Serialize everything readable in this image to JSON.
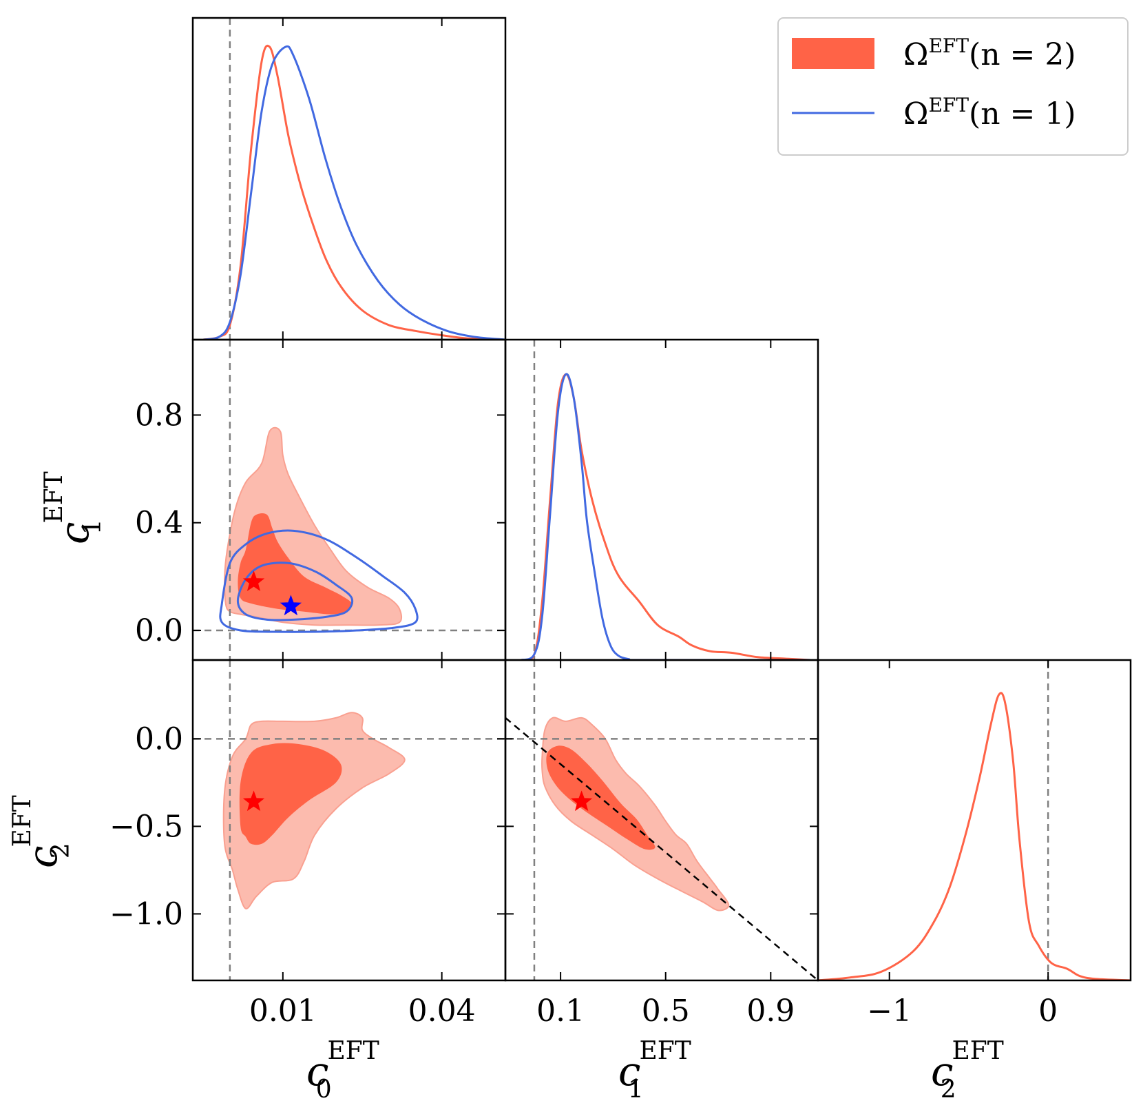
{
  "chart_data": {
    "type": "corner",
    "parameters": [
      {
        "symbol": "c",
        "sub": "0",
        "sup": "EFT",
        "xlim": [
          -0.007,
          0.052
        ],
        "xticks": [
          0.01,
          0.04
        ],
        "xtick_labels": [
          "0.01",
          "0.04"
        ],
        "fiducial": 0.0
      },
      {
        "symbol": "c",
        "sub": "1",
        "sup": "EFT",
        "xlim": [
          -0.11,
          1.08
        ],
        "xticks": [
          0.1,
          0.5,
          0.9
        ],
        "xtick_labels": [
          "0.1",
          "0.5",
          "0.9"
        ],
        "ylim": [
          -0.11,
          1.08
        ],
        "yticks": [
          0.0,
          0.4,
          0.8
        ],
        "ytick_labels": [
          "0.0",
          "0.4",
          "0.8"
        ],
        "fiducial": 0.0
      },
      {
        "symbol": "c",
        "sub": "2",
        "sup": "EFT",
        "xlim": [
          -1.45,
          0.52
        ],
        "xticks": [
          -1,
          0
        ],
        "xtick_labels": [
          "−1",
          "0"
        ],
        "ylim": [
          -1.38,
          0.45
        ],
        "yticks": [
          0.0,
          -0.5,
          -1.0
        ],
        "ytick_labels": [
          "0.0",
          "−0.5",
          "−1.0"
        ],
        "fiducial": 0.0
      }
    ],
    "legend": [
      {
        "label_base": "Ω",
        "label_sup": "EFT",
        "label_args": "(n = 2)",
        "style": "filled",
        "color": "#ff6347"
      },
      {
        "label_base": "Ω",
        "label_sup": "EFT",
        "label_args": "(n = 1)",
        "style": "line",
        "color": "#4169e1"
      }
    ],
    "legend_position": "top-right",
    "series": [
      {
        "name": "n=2",
        "color": "#ff6347",
        "fill_outer": "#fcbbae",
        "fill_inner": "#ff6347",
        "marginal_c0": [
          [
            -0.005,
            0
          ],
          [
            -0.002,
            0.01
          ],
          [
            0.0,
            0.05
          ],
          [
            0.002,
            0.25
          ],
          [
            0.004,
            0.65
          ],
          [
            0.006,
            0.95
          ],
          [
            0.0075,
            1.0
          ],
          [
            0.009,
            0.9
          ],
          [
            0.011,
            0.7
          ],
          [
            0.013,
            0.55
          ],
          [
            0.015,
            0.43
          ],
          [
            0.018,
            0.28
          ],
          [
            0.021,
            0.18
          ],
          [
            0.025,
            0.1
          ],
          [
            0.03,
            0.05
          ],
          [
            0.035,
            0.03
          ],
          [
            0.04,
            0.015
          ],
          [
            0.045,
            0.004
          ],
          [
            0.052,
            0
          ]
        ],
        "marginal_c1": [
          [
            -0.05,
            0
          ],
          [
            0.0,
            0.02
          ],
          [
            0.03,
            0.2
          ],
          [
            0.06,
            0.55
          ],
          [
            0.09,
            0.88
          ],
          [
            0.12,
            0.98
          ],
          [
            0.15,
            0.9
          ],
          [
            0.18,
            0.72
          ],
          [
            0.22,
            0.55
          ],
          [
            0.27,
            0.4
          ],
          [
            0.32,
            0.29
          ],
          [
            0.4,
            0.2
          ],
          [
            0.47,
            0.12
          ],
          [
            0.55,
            0.08
          ],
          [
            0.6,
            0.05
          ],
          [
            0.67,
            0.03
          ],
          [
            0.75,
            0.025
          ],
          [
            0.85,
            0.01
          ],
          [
            0.95,
            0.005
          ],
          [
            1.05,
            0
          ]
        ],
        "marginal_c2": [
          [
            -1.45,
            0
          ],
          [
            -1.25,
            0.01
          ],
          [
            -1.05,
            0.03
          ],
          [
            -0.85,
            0.1
          ],
          [
            -0.72,
            0.2
          ],
          [
            -0.62,
            0.32
          ],
          [
            -0.52,
            0.5
          ],
          [
            -0.43,
            0.7
          ],
          [
            -0.36,
            0.88
          ],
          [
            -0.31,
            0.98
          ],
          [
            -0.27,
            0.95
          ],
          [
            -0.22,
            0.75
          ],
          [
            -0.18,
            0.48
          ],
          [
            -0.12,
            0.2
          ],
          [
            -0.06,
            0.12
          ],
          [
            0.02,
            0.06
          ],
          [
            0.12,
            0.04
          ],
          [
            0.2,
            0.015
          ],
          [
            0.3,
            0.005
          ],
          [
            0.52,
            0
          ]
        ],
        "best_fit": {
          "c0": 0.0045,
          "c1": 0.18,
          "c2": -0.36
        },
        "contour_c0_c1_outer": [
          [
            0.003,
            0.55
          ],
          [
            0.006,
            0.62
          ],
          [
            0.0075,
            0.74
          ],
          [
            0.0095,
            0.74
          ],
          [
            0.01,
            0.65
          ],
          [
            0.011,
            0.58
          ],
          [
            0.013,
            0.5
          ],
          [
            0.016,
            0.39
          ],
          [
            0.019,
            0.3
          ],
          [
            0.022,
            0.22
          ],
          [
            0.026,
            0.16
          ],
          [
            0.03,
            0.12
          ],
          [
            0.032,
            0.08
          ],
          [
            0.032,
            0.03
          ],
          [
            0.028,
            0.02
          ],
          [
            0.022,
            0.02
          ],
          [
            0.016,
            0.02
          ],
          [
            0.01,
            0.03
          ],
          [
            0.005,
            0.05
          ],
          [
            0.002,
            0.06
          ],
          [
            0.0,
            0.07
          ],
          [
            -0.0008,
            0.1
          ],
          [
            -0.001,
            0.2
          ],
          [
            -0.0005,
            0.3
          ],
          [
            0.001,
            0.45
          ]
        ],
        "contour_c0_c1_inner": [
          [
            0.003,
            0.3
          ],
          [
            0.004,
            0.4
          ],
          [
            0.005,
            0.43
          ],
          [
            0.007,
            0.43
          ],
          [
            0.008,
            0.38
          ],
          [
            0.009,
            0.33
          ],
          [
            0.011,
            0.27
          ],
          [
            0.014,
            0.2
          ],
          [
            0.018,
            0.16
          ],
          [
            0.021,
            0.13
          ],
          [
            0.023,
            0.1
          ],
          [
            0.022,
            0.07
          ],
          [
            0.019,
            0.06
          ],
          [
            0.014,
            0.07
          ],
          [
            0.009,
            0.08
          ],
          [
            0.004,
            0.1
          ],
          [
            0.002,
            0.12
          ],
          [
            0.0015,
            0.18
          ],
          [
            0.002,
            0.25
          ]
        ],
        "contour_c0_c2_outer": [
          [
            -0.001,
            -0.6
          ],
          [
            -0.001,
            -0.3
          ],
          [
            0.0005,
            -0.1
          ],
          [
            0.003,
            0.0
          ],
          [
            0.004,
            0.08
          ],
          [
            0.006,
            0.1
          ],
          [
            0.01,
            0.1
          ],
          [
            0.016,
            0.1
          ],
          [
            0.02,
            0.12
          ],
          [
            0.023,
            0.15
          ],
          [
            0.025,
            0.12
          ],
          [
            0.025,
            0.05
          ],
          [
            0.027,
            0.0
          ],
          [
            0.03,
            -0.05
          ],
          [
            0.033,
            -0.12
          ],
          [
            0.03,
            -0.2
          ],
          [
            0.025,
            -0.28
          ],
          [
            0.02,
            -0.4
          ],
          [
            0.016,
            -0.55
          ],
          [
            0.014,
            -0.7
          ],
          [
            0.012,
            -0.8
          ],
          [
            0.008,
            -0.82
          ],
          [
            0.005,
            -0.9
          ],
          [
            0.003,
            -0.97
          ],
          [
            0.0015,
            -0.86
          ],
          [
            0.0005,
            -0.75
          ]
        ],
        "contour_c0_c2_inner": [
          [
            0.002,
            -0.5
          ],
          [
            0.002,
            -0.25
          ],
          [
            0.004,
            -0.08
          ],
          [
            0.008,
            -0.03
          ],
          [
            0.013,
            -0.03
          ],
          [
            0.018,
            -0.07
          ],
          [
            0.021,
            -0.15
          ],
          [
            0.02,
            -0.25
          ],
          [
            0.015,
            -0.35
          ],
          [
            0.011,
            -0.45
          ],
          [
            0.008,
            -0.55
          ],
          [
            0.006,
            -0.6
          ],
          [
            0.004,
            -0.6
          ],
          [
            0.003,
            -0.56
          ]
        ],
        "contour_c1_c2_outer": [
          [
            0.03,
            -0.1
          ],
          [
            0.04,
            0.05
          ],
          [
            0.07,
            0.12
          ],
          [
            0.12,
            0.1
          ],
          [
            0.18,
            0.12
          ],
          [
            0.22,
            0.08
          ],
          [
            0.27,
            0.0
          ],
          [
            0.31,
            -0.12
          ],
          [
            0.35,
            -0.2
          ],
          [
            0.4,
            -0.27
          ],
          [
            0.46,
            -0.38
          ],
          [
            0.5,
            -0.47
          ],
          [
            0.54,
            -0.55
          ],
          [
            0.58,
            -0.6
          ],
          [
            0.62,
            -0.7
          ],
          [
            0.67,
            -0.8
          ],
          [
            0.7,
            -0.86
          ],
          [
            0.74,
            -0.95
          ],
          [
            0.7,
            -0.98
          ],
          [
            0.64,
            -0.93
          ],
          [
            0.56,
            -0.87
          ],
          [
            0.47,
            -0.8
          ],
          [
            0.38,
            -0.72
          ],
          [
            0.3,
            -0.63
          ],
          [
            0.22,
            -0.55
          ],
          [
            0.14,
            -0.47
          ],
          [
            0.08,
            -0.38
          ],
          [
            0.04,
            -0.27
          ],
          [
            0.03,
            -0.18
          ]
        ],
        "contour_c1_c2_inner": [
          [
            0.05,
            -0.08
          ],
          [
            0.09,
            -0.04
          ],
          [
            0.14,
            -0.06
          ],
          [
            0.2,
            -0.14
          ],
          [
            0.26,
            -0.24
          ],
          [
            0.33,
            -0.37
          ],
          [
            0.39,
            -0.46
          ],
          [
            0.43,
            -0.55
          ],
          [
            0.46,
            -0.62
          ],
          [
            0.42,
            -0.63
          ],
          [
            0.35,
            -0.57
          ],
          [
            0.28,
            -0.5
          ],
          [
            0.2,
            -0.42
          ],
          [
            0.13,
            -0.34
          ],
          [
            0.08,
            -0.26
          ],
          [
            0.05,
            -0.17
          ]
        ]
      },
      {
        "name": "n=1",
        "color": "#4169e1",
        "marginal_c0": [
          [
            -0.005,
            0
          ],
          [
            -0.002,
            0.01
          ],
          [
            0.0,
            0.06
          ],
          [
            0.002,
            0.22
          ],
          [
            0.004,
            0.5
          ],
          [
            0.006,
            0.78
          ],
          [
            0.008,
            0.94
          ],
          [
            0.0105,
            1.0
          ],
          [
            0.012,
            0.97
          ],
          [
            0.015,
            0.82
          ],
          [
            0.018,
            0.62
          ],
          [
            0.021,
            0.45
          ],
          [
            0.024,
            0.32
          ],
          [
            0.028,
            0.2
          ],
          [
            0.032,
            0.12
          ],
          [
            0.036,
            0.07
          ],
          [
            0.041,
            0.03
          ],
          [
            0.046,
            0.01
          ],
          [
            0.052,
            0
          ]
        ],
        "marginal_c1": [
          [
            -0.05,
            0
          ],
          [
            0.0,
            0.02
          ],
          [
            0.03,
            0.15
          ],
          [
            0.06,
            0.5
          ],
          [
            0.09,
            0.85
          ],
          [
            0.12,
            0.98
          ],
          [
            0.15,
            0.9
          ],
          [
            0.18,
            0.68
          ],
          [
            0.2,
            0.48
          ],
          [
            0.23,
            0.3
          ],
          [
            0.26,
            0.14
          ],
          [
            0.29,
            0.05
          ],
          [
            0.32,
            0.015
          ],
          [
            0.36,
            0.003
          ],
          [
            0.4,
            0
          ],
          [
            1.05,
            0
          ]
        ],
        "best_fit": {
          "c0": 0.0115,
          "c1": 0.09
        },
        "contour_c0_c1_outer": [
          [
            -0.0015,
            0.1
          ],
          [
            0.0,
            0.25
          ],
          [
            0.003,
            0.32
          ],
          [
            0.007,
            0.36
          ],
          [
            0.012,
            0.37
          ],
          [
            0.018,
            0.34
          ],
          [
            0.024,
            0.27
          ],
          [
            0.029,
            0.2
          ],
          [
            0.033,
            0.14
          ],
          [
            0.035,
            0.08
          ],
          [
            0.035,
            0.03
          ],
          [
            0.031,
            0.01
          ],
          [
            0.024,
            0.0
          ],
          [
            0.016,
            -0.005
          ],
          [
            0.008,
            -0.005
          ],
          [
            0.002,
            0.0
          ],
          [
            -0.0015,
            0.03
          ]
        ],
        "contour_c0_c1_inner": [
          [
            0.0015,
            0.11
          ],
          [
            0.003,
            0.19
          ],
          [
            0.006,
            0.24
          ],
          [
            0.011,
            0.25
          ],
          [
            0.016,
            0.22
          ],
          [
            0.02,
            0.17
          ],
          [
            0.023,
            0.12
          ],
          [
            0.022,
            0.07
          ],
          [
            0.018,
            0.05
          ],
          [
            0.012,
            0.04
          ],
          [
            0.007,
            0.04
          ],
          [
            0.003,
            0.06
          ]
        ]
      }
    ],
    "reference_line_c1_c2": {
      "x": [
        -0.11,
        1.08
      ],
      "y": [
        0.12,
        -1.38
      ],
      "style": "dashed",
      "color": "#000000"
    }
  }
}
